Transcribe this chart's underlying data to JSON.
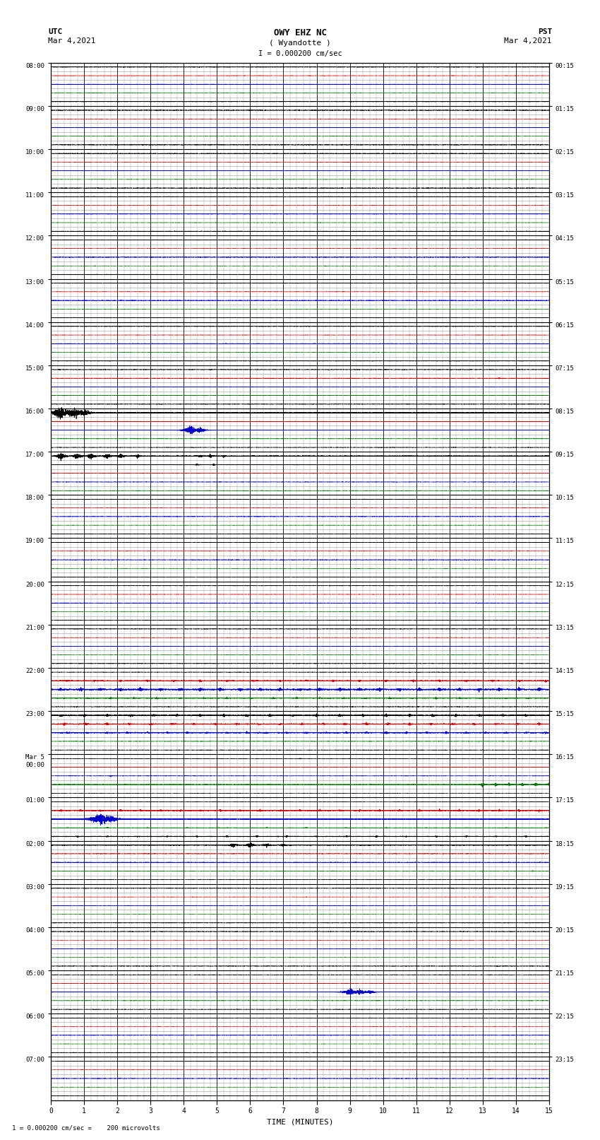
{
  "title_line1": "OWY EHZ NC",
  "title_line2": "( Wyandotte )",
  "scale_text": "I = 0.000200 cm/sec",
  "left_label": "UTC",
  "left_date": "Mar 4,2021",
  "right_label": "PST",
  "right_date": "Mar 4,2021",
  "bottom_label": "TIME (MINUTES)",
  "bottom_note": "1 = 0.000200 cm/sec =    200 microvolts",
  "left_times": [
    "08:00",
    "09:00",
    "10:00",
    "11:00",
    "12:00",
    "13:00",
    "14:00",
    "15:00",
    "16:00",
    "17:00",
    "18:00",
    "19:00",
    "20:00",
    "21:00",
    "22:00",
    "23:00",
    "Mar 5\n00:00",
    "01:00",
    "02:00",
    "03:00",
    "04:00",
    "05:00",
    "06:00",
    "07:00"
  ],
  "right_times": [
    "00:15",
    "01:15",
    "02:15",
    "03:15",
    "04:15",
    "05:15",
    "06:15",
    "07:15",
    "08:15",
    "09:15",
    "10:15",
    "11:15",
    "12:15",
    "13:15",
    "14:15",
    "15:15",
    "16:15",
    "17:15",
    "18:15",
    "19:15",
    "20:15",
    "21:15",
    "22:15",
    "23:15"
  ],
  "num_rows": 24,
  "x_min": 0,
  "x_max": 15,
  "bg_color": "#ffffff",
  "grid_color": "#999999",
  "trace_color_black": "#000000",
  "trace_color_blue": "#0000cc",
  "trace_color_red": "#cc0000",
  "trace_color_green": "#007700"
}
